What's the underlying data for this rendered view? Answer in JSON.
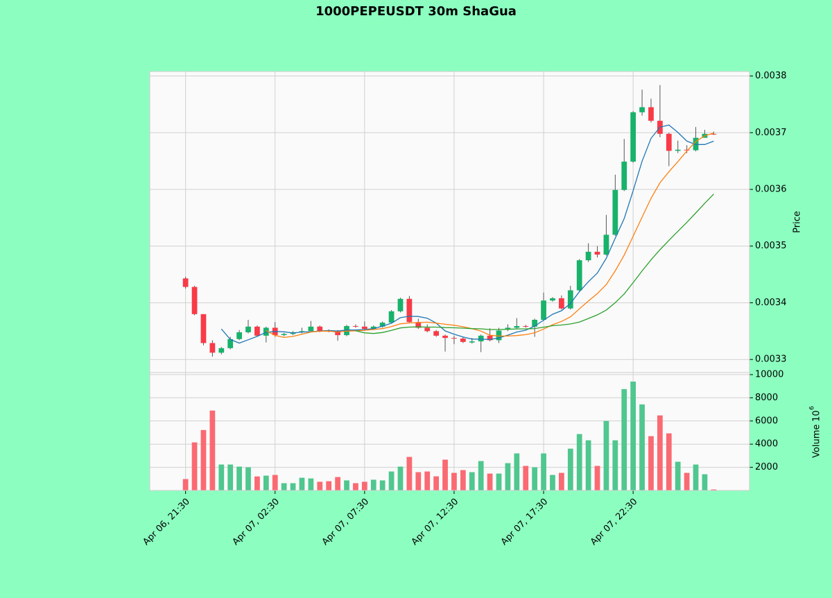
{
  "chart_data": {
    "type": "candlestick",
    "title": "1000PEPEUSDT 30m ShaGua",
    "y_label": "Price",
    "y2_label": "Volume",
    "y2_label_base": "10",
    "y2_label_exponent": "6",
    "categories": [
      "Apr 06, 21:30",
      null,
      null,
      null,
      null,
      null,
      null,
      null,
      null,
      null,
      "Apr 07, 02:30",
      null,
      null,
      null,
      null,
      null,
      null,
      null,
      null,
      null,
      "Apr 07, 07:30",
      null,
      null,
      null,
      null,
      null,
      null,
      null,
      null,
      null,
      "Apr 07, 12:30",
      null,
      null,
      null,
      null,
      null,
      null,
      null,
      null,
      null,
      "Apr 07, 17:30",
      null,
      null,
      null,
      null,
      null,
      null,
      null,
      null,
      null,
      "Apr 07, 22:30",
      null,
      null,
      null,
      null,
      null,
      null,
      null,
      null,
      null
    ],
    "open": [
      0.003443,
      0.003428,
      0.00338,
      0.003329,
      0.003312,
      0.00332,
      0.003336,
      0.003348,
      0.003358,
      0.003342,
      0.003356,
      0.003343,
      0.003345,
      0.003348,
      0.00335,
      0.003358,
      0.003351,
      0.00335,
      0.003343,
      0.003359,
      0.003358,
      0.003354,
      0.003358,
      0.003365,
      0.003385,
      0.003407,
      0.003366,
      0.003356,
      0.00335,
      0.003342,
      0.003338,
      0.003337,
      0.00333,
      0.003332,
      0.003342,
      0.003334,
      0.003354,
      0.003356,
      0.003359,
      0.003358,
      0.00337,
      0.003404,
      0.003408,
      0.00339,
      0.003422,
      0.003475,
      0.00349,
      0.003485,
      0.00352,
      0.003599,
      0.003649,
      0.003736,
      0.003745,
      0.003721,
      0.003698,
      0.003668,
      0.00367,
      0.003669,
      0.003691,
      0.003698
    ],
    "high": [
      0.003446,
      0.00343,
      0.00338,
      0.003334,
      0.003322,
      0.00334,
      0.003352,
      0.00337,
      0.00336,
      0.003358,
      0.003366,
      0.003347,
      0.00335,
      0.003356,
      0.003368,
      0.00336,
      0.003353,
      0.003352,
      0.003361,
      0.003362,
      0.003367,
      0.00336,
      0.003367,
      0.003387,
      0.003409,
      0.003412,
      0.003372,
      0.003362,
      0.003352,
      0.003344,
      0.003342,
      0.00334,
      0.003338,
      0.003344,
      0.003355,
      0.003356,
      0.003362,
      0.003373,
      0.003361,
      0.003372,
      0.003418,
      0.00341,
      0.003413,
      0.00343,
      0.003477,
      0.003505,
      0.0035,
      0.003555,
      0.003626,
      0.003689,
      0.003738,
      0.003776,
      0.00376,
      0.003784,
      0.0037,
      0.003686,
      0.003678,
      0.00371,
      0.003705,
      0.003702
    ],
    "low": [
      0.003425,
      0.003378,
      0.003325,
      0.003305,
      0.003309,
      0.003318,
      0.003334,
      0.003346,
      0.00334,
      0.00333,
      0.00334,
      0.003341,
      0.003343,
      0.003346,
      0.003348,
      0.003348,
      0.003348,
      0.003333,
      0.003341,
      0.003356,
      0.003352,
      0.003352,
      0.003356,
      0.003363,
      0.003383,
      0.003364,
      0.003354,
      0.003348,
      0.00334,
      0.003314,
      0.003327,
      0.003329,
      0.003328,
      0.003313,
      0.003332,
      0.003329,
      0.00335,
      0.003354,
      0.003356,
      0.00334,
      0.003368,
      0.003402,
      0.003388,
      0.003388,
      0.00342,
      0.003472,
      0.00348,
      0.003483,
      0.003518,
      0.003597,
      0.003647,
      0.00373,
      0.003718,
      0.003692,
      0.003641,
      0.003664,
      0.003664,
      0.003667,
      0.003692,
      0.003696
    ],
    "close": [
      0.003428,
      0.00338,
      0.003329,
      0.003312,
      0.00332,
      0.003336,
      0.003348,
      0.003358,
      0.003342,
      0.003356,
      0.003343,
      0.003345,
      0.003348,
      0.00335,
      0.003358,
      0.00335,
      0.00335,
      0.003343,
      0.003359,
      0.003358,
      0.003354,
      0.003358,
      0.003365,
      0.003385,
      0.003407,
      0.003366,
      0.003356,
      0.00335,
      0.003342,
      0.003338,
      0.003337,
      0.003331,
      0.003332,
      0.003342,
      0.003334,
      0.003351,
      0.003356,
      0.003359,
      0.003358,
      0.00337,
      0.003404,
      0.003408,
      0.00339,
      0.003422,
      0.003475,
      0.00349,
      0.003485,
      0.00352,
      0.003599,
      0.003649,
      0.003736,
      0.003745,
      0.003721,
      0.003698,
      0.003668,
      0.00367,
      0.003669,
      0.003691,
      0.003698,
      0.003697
    ],
    "volume": [
      985,
      4150,
      5220,
      6900,
      2240,
      2240,
      2060,
      2000,
      1210,
      1280,
      1340,
      630,
      630,
      1100,
      1040,
      750,
      800,
      1160,
      870,
      630,
      750,
      930,
      870,
      1640,
      2060,
      2900,
      1580,
      1640,
      1220,
      2660,
      1520,
      1760,
      1580,
      2540,
      1460,
      1460,
      2360,
      3200,
      2120,
      2000,
      3200,
      1340,
      1520,
      3610,
      4870,
      4330,
      2120,
      6000,
      4330,
      8750,
      9400,
      7430,
      4690,
      6480,
      4930,
      2480,
      1520,
      2240,
      1400,
      90
    ],
    "up_color": "#18b26b",
    "down_color": "#f93a47",
    "up_volume_color": "#4fc78f",
    "down_volume_color": "#fa6a72",
    "moving_averages": [
      {
        "period": 5,
        "color": "#1f77b4"
      },
      {
        "period": 10,
        "color": "#ff7f0e"
      },
      {
        "period": 20,
        "color": "#2ca02c"
      }
    ],
    "xlim": [
      -4,
      63
    ],
    "ylim": [
      0.003277,
      0.003808
    ],
    "yticks": [
      0.0033,
      0.0034,
      0.0035,
      0.0036,
      0.0037,
      0.0038
    ],
    "y2lim": [
      0,
      10180
    ],
    "y2ticks": [
      2000,
      4000,
      6000,
      8000,
      10000
    ],
    "grid": true
  }
}
